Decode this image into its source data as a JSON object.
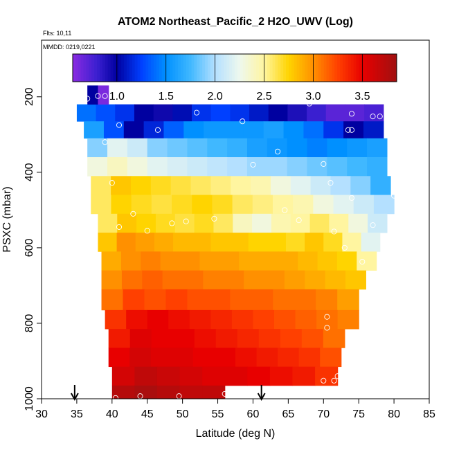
{
  "chart_data": {
    "type": "heatmap",
    "title": "ATOM2 Northeast_Pacific_2 H2O_UWV (Log)",
    "flights_label": "Flts: 10,11",
    "dates_label": "MMDD: 0219,0221",
    "xlabel": "Latitude (deg N)",
    "ylabel": "PSXC (mbar)",
    "xlim": [
      30,
      85
    ],
    "ylim": [
      1000,
      50
    ],
    "x_ticks": [
      30,
      35,
      40,
      45,
      50,
      55,
      60,
      65,
      70,
      75,
      80,
      85
    ],
    "y_ticks": [
      200,
      400,
      600,
      800,
      1000
    ],
    "colorbar": {
      "range": [
        0.55,
        3.85
      ],
      "ticks": [
        1.0,
        1.5,
        2.0,
        2.5,
        3.0,
        3.5
      ],
      "tick_labels": [
        "1.0",
        "1.5",
        "2.0",
        "2.5",
        "3.0",
        "3.5"
      ],
      "stops": [
        {
          "v": 0.55,
          "c": "#8a2be2"
        },
        {
          "v": 0.8,
          "c": "#3a1fd0"
        },
        {
          "v": 1.0,
          "c": "#0000a0"
        },
        {
          "v": 1.25,
          "c": "#0040ff"
        },
        {
          "v": 1.5,
          "c": "#0090ff"
        },
        {
          "v": 1.75,
          "c": "#40b8ff"
        },
        {
          "v": 2.0,
          "c": "#b4e0ff"
        },
        {
          "v": 2.25,
          "c": "#eef8ee"
        },
        {
          "v": 2.5,
          "c": "#fff5a0"
        },
        {
          "v": 2.75,
          "c": "#ffd400"
        },
        {
          "v": 3.0,
          "c": "#ff9000"
        },
        {
          "v": 3.25,
          "c": "#ff4000"
        },
        {
          "v": 3.5,
          "c": "#e80000"
        },
        {
          "v": 3.85,
          "c": "#a01010"
        }
      ]
    },
    "bands": [
      {
        "p_top": 220,
        "p_bot": 265,
        "lat_start": 35,
        "lat_end": 78.5,
        "values": [
          1.4,
          1.3,
          1.2,
          1.0,
          0.95,
          1.05,
          1.2,
          1.25,
          1.2,
          1.1,
          1.0,
          0.9,
          0.8,
          0.7,
          0.7,
          0.75
        ]
      },
      {
        "p_top": 265,
        "p_bot": 310,
        "lat_start": 36,
        "lat_end": 78.5,
        "values": [
          1.6,
          1.3,
          1.0,
          1.15,
          1.35,
          1.5,
          1.55,
          1.55,
          1.55,
          1.6,
          1.5,
          1.4,
          1.2,
          1.0,
          1.1
        ]
      },
      {
        "p_top": 310,
        "p_bot": 360,
        "lat_start": 36.5,
        "lat_end": 79,
        "values": [
          1.9,
          2.2,
          2.1,
          1.9,
          1.85,
          1.8,
          1.75,
          1.7,
          1.6,
          1.55,
          1.5,
          1.45,
          1.5,
          1.55,
          1.6
        ]
      },
      {
        "p_top": 360,
        "p_bot": 410,
        "lat_start": 36.5,
        "lat_end": 79,
        "values": [
          2.3,
          2.4,
          2.3,
          2.2,
          2.15,
          2.1,
          2.05,
          2.0,
          1.95,
          1.95,
          1.9,
          1.85,
          1.8,
          1.75,
          1.7
        ]
      },
      {
        "p_top": 410,
        "p_bot": 460,
        "lat_start": 37,
        "lat_end": 79.5,
        "values": [
          2.6,
          2.8,
          2.75,
          2.7,
          2.65,
          2.6,
          2.55,
          2.5,
          2.45,
          2.3,
          2.2,
          2.1,
          2.0,
          1.9,
          1.7
        ]
      },
      {
        "p_top": 460,
        "p_bot": 510,
        "lat_start": 37,
        "lat_end": 80,
        "values": [
          2.6,
          2.75,
          2.7,
          2.65,
          2.7,
          2.75,
          2.7,
          2.6,
          2.55,
          2.5,
          2.45,
          2.3,
          2.2,
          2.1,
          2.0
        ]
      },
      {
        "p_top": 510,
        "p_bot": 560,
        "lat_start": 38,
        "lat_end": 79,
        "values": [
          2.6,
          2.8,
          2.75,
          2.7,
          2.65,
          2.7,
          2.6,
          2.4,
          2.3,
          2.45,
          2.5,
          2.6,
          2.5,
          2.3,
          2.1
        ]
      },
      {
        "p_top": 560,
        "p_bot": 610,
        "lat_start": 38,
        "lat_end": 78,
        "values": [
          2.8,
          3.0,
          2.95,
          2.9,
          2.85,
          2.85,
          2.8,
          2.8,
          2.75,
          2.75,
          2.7,
          2.8,
          2.7,
          2.5,
          2.2
        ]
      },
      {
        "p_top": 610,
        "p_bot": 660,
        "lat_start": 38.5,
        "lat_end": 77.5,
        "values": [
          2.9,
          3.0,
          3.05,
          3.0,
          3.0,
          2.95,
          2.95,
          2.9,
          2.9,
          2.9,
          2.85,
          2.8,
          2.75,
          2.5
        ]
      },
      {
        "p_top": 660,
        "p_bot": 710,
        "lat_start": 38.5,
        "lat_end": 76,
        "values": [
          3.0,
          3.1,
          3.15,
          3.1,
          3.1,
          3.05,
          3.05,
          3.0,
          3.0,
          2.95,
          2.9,
          2.85,
          2.8
        ]
      },
      {
        "p_top": 710,
        "p_bot": 765,
        "lat_start": 38.5,
        "lat_end": 75,
        "values": [
          3.1,
          3.25,
          3.2,
          3.25,
          3.2,
          3.2,
          3.15,
          3.15,
          3.1,
          3.1,
          3.05,
          2.95
        ]
      },
      {
        "p_top": 765,
        "p_bot": 815,
        "lat_start": 39,
        "lat_end": 75,
        "values": [
          3.3,
          3.45,
          3.5,
          3.45,
          3.4,
          3.35,
          3.3,
          3.25,
          3.2,
          3.15,
          3.1,
          3.05
        ]
      },
      {
        "p_top": 815,
        "p_bot": 865,
        "lat_start": 39.5,
        "lat_end": 73,
        "values": [
          3.4,
          3.55,
          3.5,
          3.5,
          3.45,
          3.4,
          3.35,
          3.3,
          3.25,
          3.2,
          3.1
        ]
      },
      {
        "p_top": 865,
        "p_bot": 915,
        "lat_start": 39.5,
        "lat_end": 72.5,
        "values": [
          3.5,
          3.6,
          3.55,
          3.55,
          3.5,
          3.5,
          3.45,
          3.4,
          3.35,
          3.3,
          3.2
        ]
      },
      {
        "p_top": 915,
        "p_bot": 965,
        "lat_start": 40,
        "lat_end": 72,
        "values": [
          3.6,
          3.7,
          3.65,
          3.6,
          3.55,
          3.55,
          3.5,
          3.45,
          3.4,
          3.3
        ]
      },
      {
        "p_top": 965,
        "p_bot": 1000,
        "lat_start": 40,
        "lat_end": 56,
        "values": [
          3.75,
          3.8,
          3.75,
          3.7,
          3.7
        ]
      },
      {
        "p_top": 170,
        "p_bot": 220,
        "lat_start": 36.5,
        "lat_end": 39.5,
        "values": [
          1.0,
          0.6
        ]
      }
    ],
    "points": [
      {
        "lat": 36.5,
        "p": 205
      },
      {
        "lat": 38,
        "p": 198
      },
      {
        "lat": 39,
        "p": 198
      },
      {
        "lat": 41,
        "p": 275
      },
      {
        "lat": 46.5,
        "p": 288
      },
      {
        "lat": 52,
        "p": 242
      },
      {
        "lat": 58.5,
        "p": 265
      },
      {
        "lat": 68,
        "p": 218
      },
      {
        "lat": 73.5,
        "p": 288
      },
      {
        "lat": 74,
        "p": 245
      },
      {
        "lat": 77,
        "p": 252
      },
      {
        "lat": 78,
        "p": 252
      },
      {
        "lat": 74,
        "p": 288
      },
      {
        "lat": 39,
        "p": 320
      },
      {
        "lat": 63.5,
        "p": 345
      },
      {
        "lat": 60,
        "p": 380
      },
      {
        "lat": 70,
        "p": 378
      },
      {
        "lat": 40,
        "p": 428
      },
      {
        "lat": 71,
        "p": 428
      },
      {
        "lat": 74,
        "p": 468
      },
      {
        "lat": 80,
        "p": 462
      },
      {
        "lat": 43,
        "p": 510
      },
      {
        "lat": 64.5,
        "p": 500
      },
      {
        "lat": 41,
        "p": 545
      },
      {
        "lat": 45,
        "p": 555
      },
      {
        "lat": 48.5,
        "p": 535
      },
      {
        "lat": 50.5,
        "p": 530
      },
      {
        "lat": 54.5,
        "p": 523
      },
      {
        "lat": 66.5,
        "p": 527
      },
      {
        "lat": 71.5,
        "p": 557
      },
      {
        "lat": 77,
        "p": 540
      },
      {
        "lat": 73,
        "p": 600
      },
      {
        "lat": 75.5,
        "p": 637
      },
      {
        "lat": 70.5,
        "p": 783
      },
      {
        "lat": 70.5,
        "p": 812
      },
      {
        "lat": 70,
        "p": 952
      },
      {
        "lat": 71.5,
        "p": 952
      },
      {
        "lat": 72,
        "p": 940
      },
      {
        "lat": 40.5,
        "p": 998
      },
      {
        "lat": 44,
        "p": 993
      },
      {
        "lat": 49.5,
        "p": 993
      },
      {
        "lat": 56,
        "p": 987
      }
    ],
    "arrows": [
      {
        "lat": 34.7
      },
      {
        "lat": 61.2
      }
    ]
  }
}
